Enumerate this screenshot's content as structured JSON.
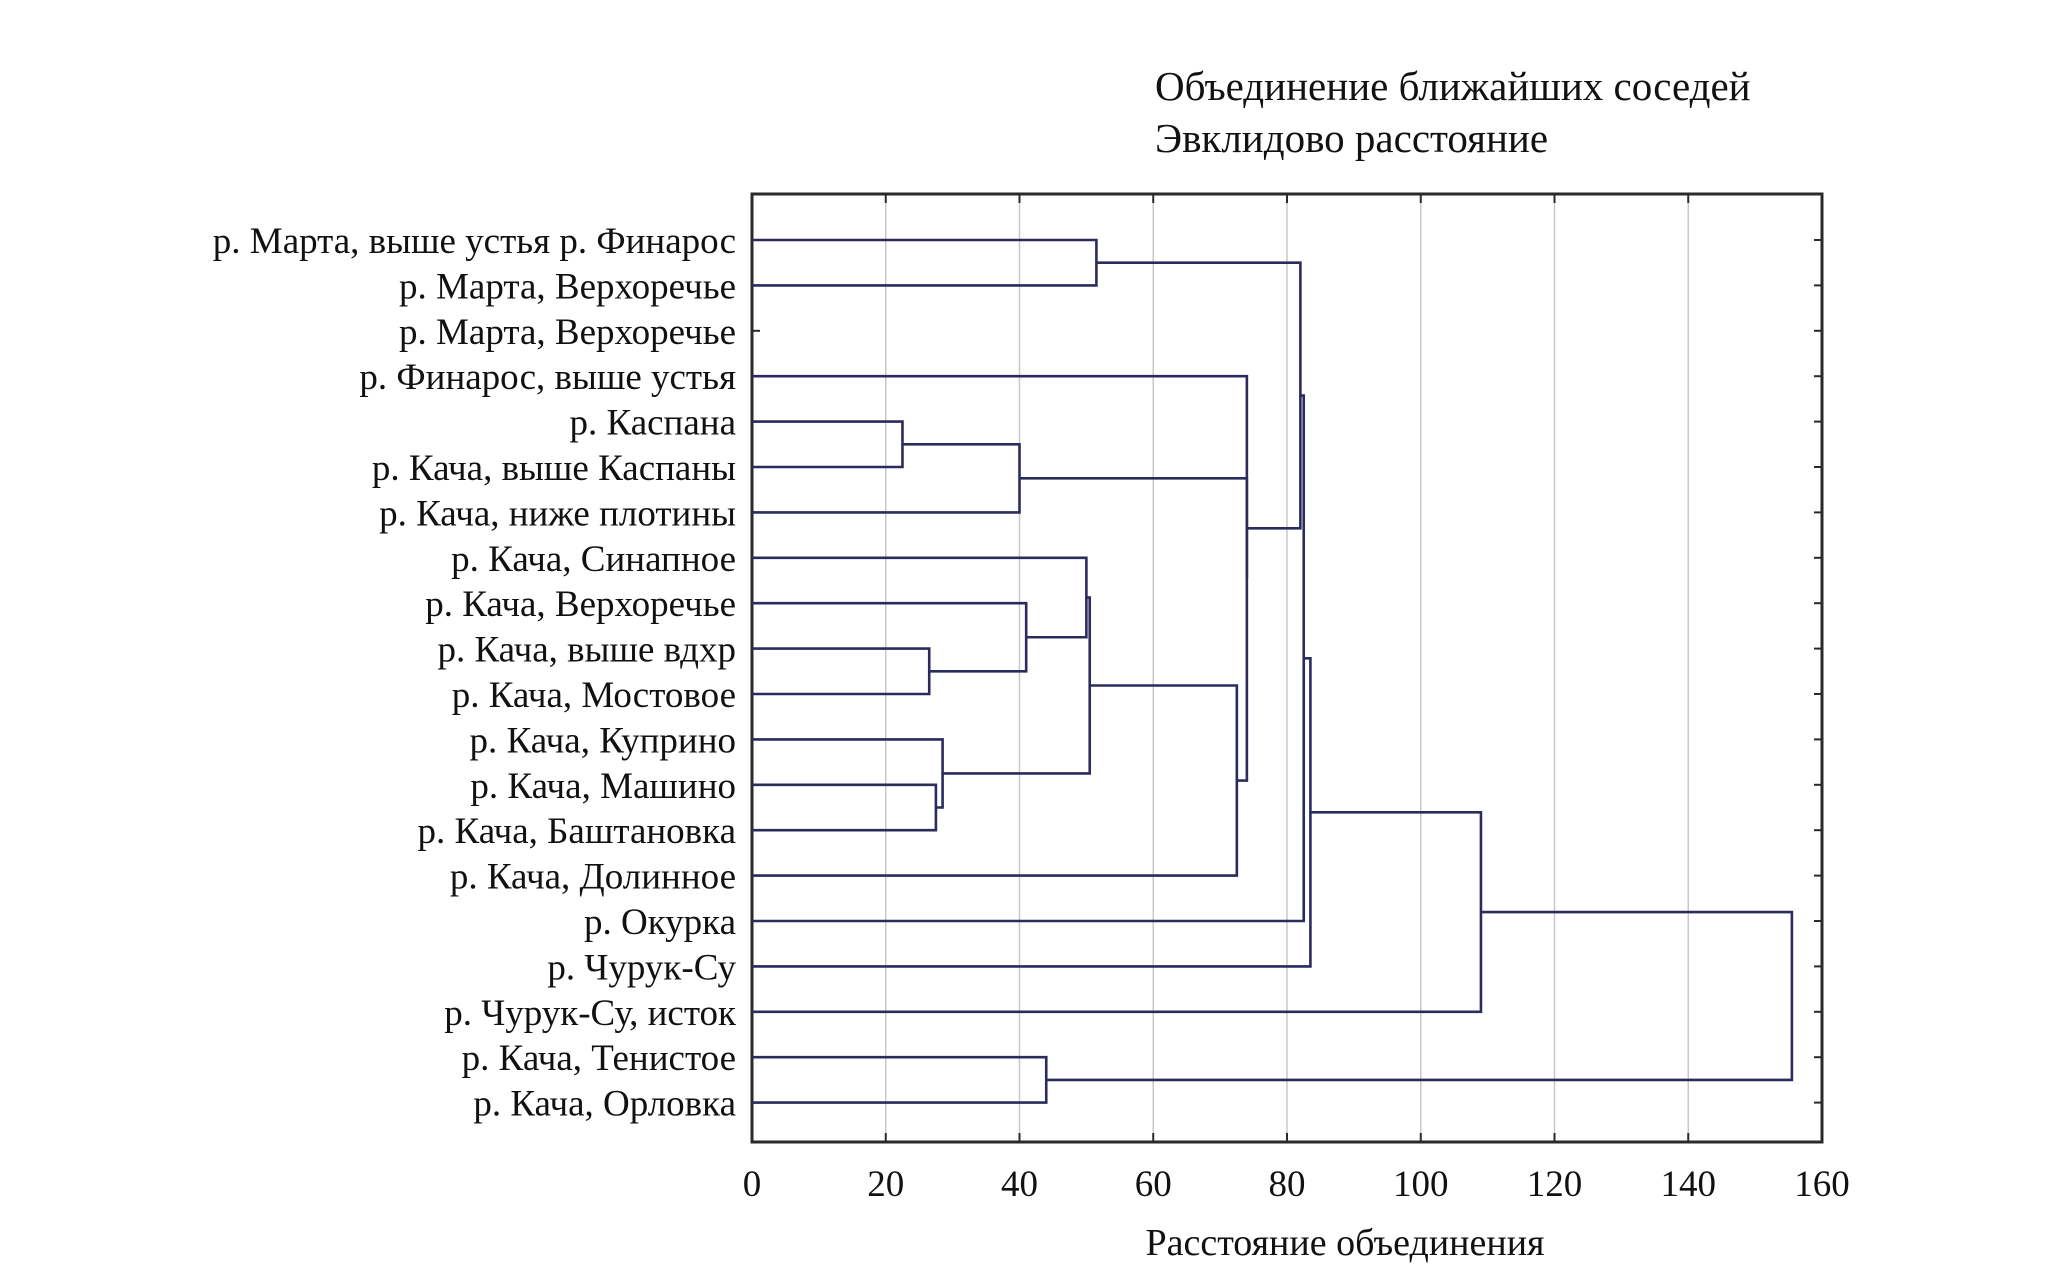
{
  "chart_data": {
    "type": "dendrogram",
    "title": "Объединение ближайших соседей",
    "subtitle": "Эвклидово расстояние",
    "xlabel": "Расстояние объединения",
    "ylabel": "",
    "xlim": [
      0,
      160
    ],
    "x_ticks": [
      "0",
      "20",
      "40",
      "60",
      "80",
      "100",
      "120",
      "140",
      "160"
    ],
    "grid": true,
    "leaves": [
      "р. Марта, выше устья р. Финарос",
      "р. Марта, Верхоречье",
      "р. Марта, Верхоречье",
      "р. Финарос, выше устья",
      "р. Каспана",
      "р. Кача, выше Каспаны",
      "р. Кача, ниже плотины",
      "р. Кача, Синапное",
      "р. Кача, Верхоречье",
      "р. Кача, выше вдхр",
      "р. Кача, Мостовое",
      "р. Кача, Куприно",
      "р. Кача, Машино",
      "р. Кача, Баштановка",
      "р. Кача, Долинное",
      "р. Окурка",
      "р. Чурук-Су",
      "р. Чурук-Су, исток",
      "р. Кача, Тенистое",
      "р. Кача, Орловка"
    ],
    "merges": [
      {
        "id": "c1",
        "left": 0,
        "right": 1,
        "distance": 51.5
      },
      {
        "id": "c2",
        "left": 4,
        "right": 5,
        "distance": 22.5
      },
      {
        "id": "c3",
        "left": "c2",
        "right": 6,
        "distance": 40
      },
      {
        "id": "c4",
        "left": 9,
        "right": 10,
        "distance": 26.5
      },
      {
        "id": "c5",
        "left": 8,
        "right": "c4",
        "distance": 41
      },
      {
        "id": "c6",
        "left": 12,
        "right": 13,
        "distance": 27.5
      },
      {
        "id": "c7",
        "left": 11,
        "right": "c6",
        "distance": 28.5
      },
      {
        "id": "c8",
        "left": 7,
        "right": "c5",
        "distance": 50
      },
      {
        "id": "c9",
        "left": "c8",
        "right": "c7",
        "distance": 50.5
      },
      {
        "id": "c10",
        "left": "c9",
        "right": 14,
        "distance": 72.5
      },
      {
        "id": "c11",
        "left": 3,
        "right": "c10",
        "distance": 74
      },
      {
        "id": "c12",
        "left": "c3",
        "right": "c11",
        "distance": 74
      },
      {
        "id": "c13",
        "left": "c1",
        "right": "c12",
        "distance": 82
      },
      {
        "id": "c14",
        "left": "c13",
        "right": 15,
        "distance": 82.5
      },
      {
        "id": "c15",
        "left": "c14",
        "right": 16,
        "distance": 83.5
      },
      {
        "id": "c16",
        "left": "c15",
        "right": 17,
        "distance": 109
      },
      {
        "id": "c17",
        "left": 18,
        "right": 19,
        "distance": 44
      },
      {
        "id": "c18",
        "left": "c16",
        "right": "c17",
        "distance": 155.5
      }
    ]
  }
}
